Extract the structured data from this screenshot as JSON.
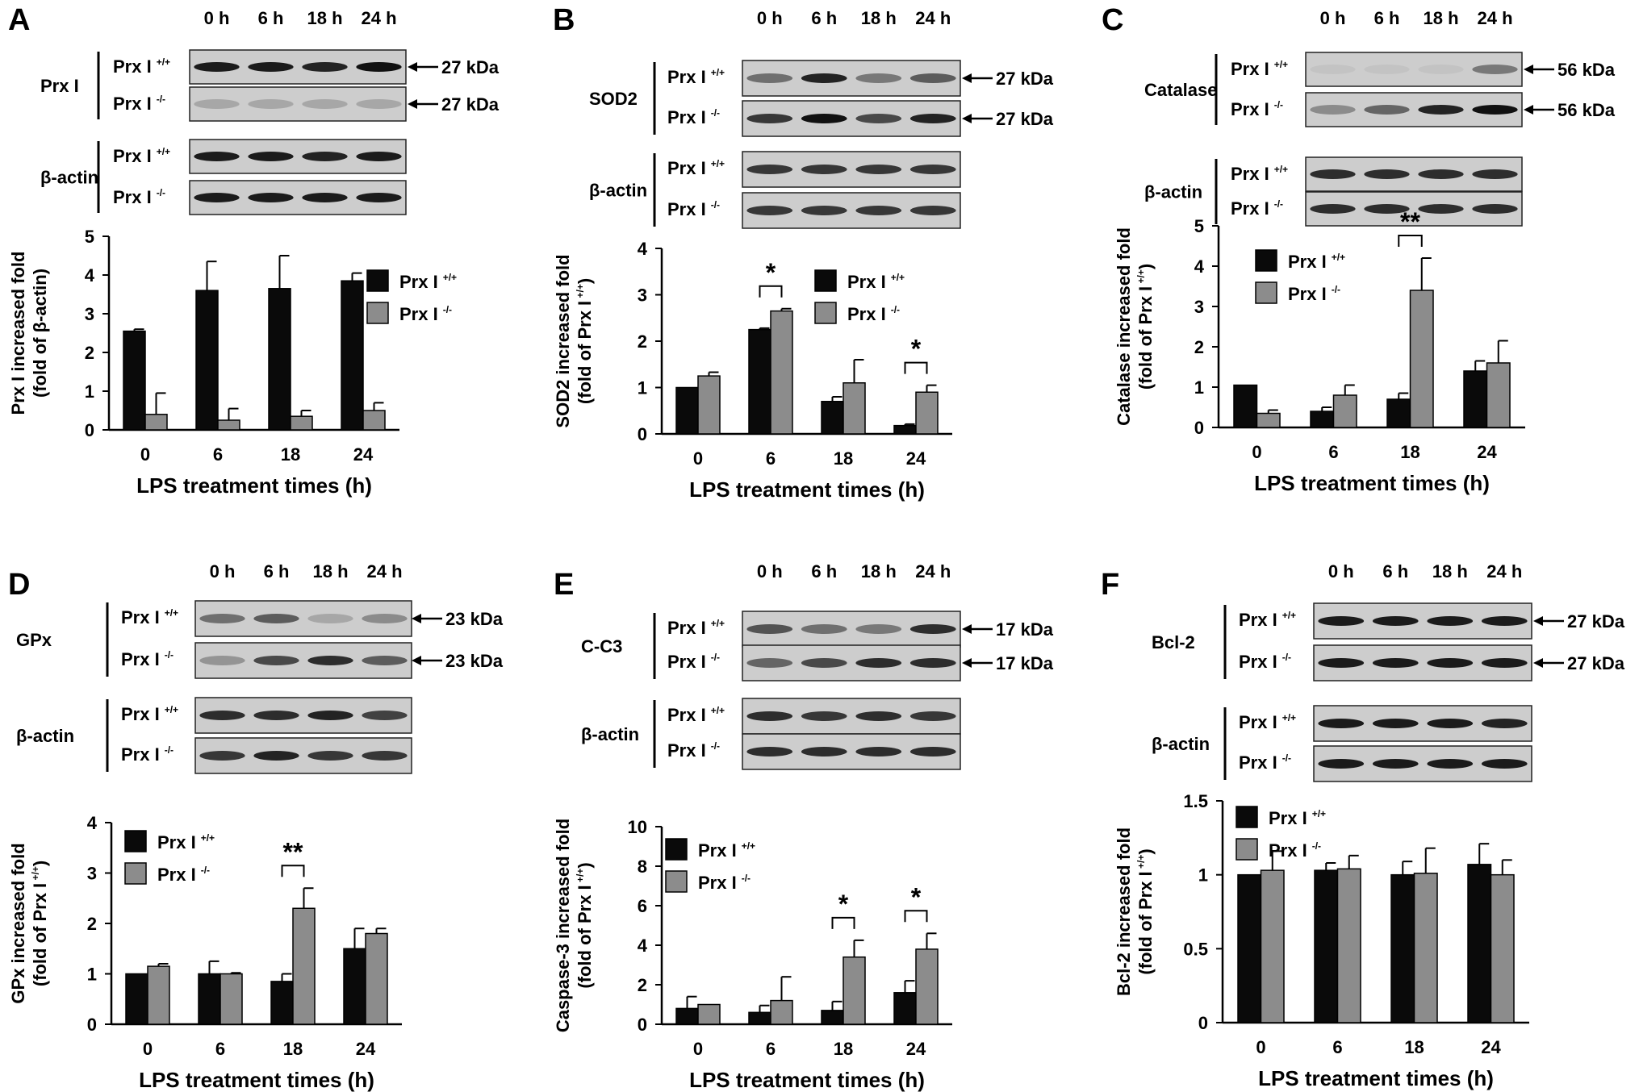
{
  "colors": {
    "wt": "#0a0a0a",
    "ko": "#8c8c8c",
    "blot_bg": "#cdcdcd"
  },
  "chart_data": [
    {
      "type": "bar",
      "panel": "A",
      "categories": [
        "0",
        "6",
        "18",
        "24"
      ],
      "series": [
        {
          "name": "Prx I +/+",
          "values": [
            2.55,
            3.6,
            3.65,
            3.85
          ],
          "errors": [
            0.05,
            0.75,
            0.85,
            0.2
          ]
        },
        {
          "name": "Prx I -/-",
          "values": [
            0.4,
            0.25,
            0.35,
            0.5
          ],
          "errors": [
            0.55,
            0.3,
            0.15,
            0.2
          ]
        }
      ],
      "xlabel": "LPS treatment times (h)",
      "ylabel": [
        "Prx I increased fold",
        "(fold of β-actin)"
      ],
      "ylim": [
        0,
        5
      ],
      "yticks": [
        0,
        1,
        2,
        3,
        4,
        5
      ],
      "significance": [],
      "blot": {
        "lanes": [
          "0 h",
          "6 h",
          "18 h",
          "24 h"
        ],
        "groups": [
          {
            "protein": "Prx I",
            "rows": [
              {
                "genotype": "Prx I",
                "sup": "+/+",
                "size": "27 kDa"
              },
              {
                "genotype": "Prx I",
                "sup": "-/-",
                "size": "27 kDa"
              }
            ]
          },
          {
            "protein": "β-actin",
            "rows": [
              {
                "genotype": "Prx I",
                "sup": "+/+"
              },
              {
                "genotype": "Prx I",
                "sup": "-/-"
              }
            ]
          }
        ]
      }
    },
    {
      "type": "bar",
      "panel": "B",
      "categories": [
        "0",
        "6",
        "18",
        "24"
      ],
      "series": [
        {
          "name": "Prx I +/+",
          "values": [
            1.0,
            2.25,
            0.7,
            0.18
          ],
          "errors": [
            0.0,
            0.03,
            0.1,
            0.03
          ]
        },
        {
          "name": "Prx I -/-",
          "values": [
            1.25,
            2.65,
            1.1,
            0.9
          ],
          "errors": [
            0.08,
            0.05,
            0.5,
            0.15
          ]
        }
      ],
      "xlabel": "LPS treatment times (h)",
      "ylabel": [
        "SOD2 increased fold",
        "(fold of Prx I +/+)"
      ],
      "ylim": [
        0,
        4
      ],
      "yticks": [
        0,
        1,
        2,
        3,
        4
      ],
      "significance": [
        {
          "category": "6",
          "label": "*"
        },
        {
          "category": "24",
          "label": "*"
        }
      ],
      "blot": {
        "lanes": [
          "0 h",
          "6 h",
          "18 h",
          "24 h"
        ],
        "groups": [
          {
            "protein": "SOD2",
            "rows": [
              {
                "genotype": "Prx I",
                "sup": "+/+",
                "size": "27 kDa"
              },
              {
                "genotype": "Prx I",
                "sup": "-/-",
                "size": "27 kDa"
              }
            ]
          },
          {
            "protein": "β-actin",
            "rows": [
              {
                "genotype": "Prx I",
                "sup": "+/+"
              },
              {
                "genotype": "Prx I",
                "sup": "-/-"
              }
            ]
          }
        ]
      }
    },
    {
      "type": "bar",
      "panel": "C",
      "categories": [
        "0",
        "6",
        "18",
        "24"
      ],
      "series": [
        {
          "name": "Prx I +/+",
          "values": [
            1.05,
            0.4,
            0.7,
            1.4
          ],
          "errors": [
            0.0,
            0.1,
            0.15,
            0.25
          ]
        },
        {
          "name": "Prx I -/-",
          "values": [
            0.35,
            0.8,
            3.4,
            1.6
          ],
          "errors": [
            0.08,
            0.25,
            0.8,
            0.55
          ]
        }
      ],
      "xlabel": "LPS treatment times (h)",
      "ylabel": [
        "Catalase increased fold",
        "(fold of Prx I +/+)"
      ],
      "ylim": [
        0,
        5
      ],
      "yticks": [
        0,
        1,
        2,
        3,
        4,
        5
      ],
      "significance": [
        {
          "category": "18",
          "label": "**"
        }
      ],
      "blot": {
        "lanes": [
          "0 h",
          "6 h",
          "18 h",
          "24 h"
        ],
        "groups": [
          {
            "protein": "Catalase",
            "rows": [
              {
                "genotype": "Prx I",
                "sup": "+/+",
                "size": "56 kDa"
              },
              {
                "genotype": "Prx I",
                "sup": "-/-",
                "size": "56 kDa"
              }
            ]
          },
          {
            "protein": "β-actin",
            "rows": [
              {
                "genotype": "Prx I",
                "sup": "+/+"
              },
              {
                "genotype": "Prx I",
                "sup": "-/-"
              }
            ]
          }
        ]
      }
    },
    {
      "type": "bar",
      "panel": "D",
      "categories": [
        "0",
        "6",
        "18",
        "24"
      ],
      "series": [
        {
          "name": "Prx I +/+",
          "values": [
            1.0,
            1.0,
            0.85,
            1.5
          ],
          "errors": [
            0.0,
            0.25,
            0.15,
            0.4
          ]
        },
        {
          "name": "Prx I -/-",
          "values": [
            1.15,
            1.0,
            2.3,
            1.8
          ],
          "errors": [
            0.05,
            0.02,
            0.4,
            0.1
          ]
        }
      ],
      "xlabel": "LPS treatment times (h)",
      "ylabel": [
        "GPx increased fold",
        "(fold of Prx I +/+)"
      ],
      "ylim": [
        0,
        4
      ],
      "yticks": [
        0,
        1,
        2,
        3,
        4
      ],
      "significance": [
        {
          "category": "18",
          "label": "**"
        }
      ],
      "blot": {
        "lanes": [
          "0 h",
          "6 h",
          "18 h",
          "24 h"
        ],
        "groups": [
          {
            "protein": "GPx",
            "rows": [
              {
                "genotype": "Prx I",
                "sup": "+/+",
                "size": "23 kDa"
              },
              {
                "genotype": "Prx I",
                "sup": "-/-",
                "size": "23 kDa"
              }
            ]
          },
          {
            "protein": "β-actin",
            "rows": [
              {
                "genotype": "Prx I",
                "sup": "+/+"
              },
              {
                "genotype": "Prx I",
                "sup": "-/-"
              }
            ]
          }
        ]
      }
    },
    {
      "type": "bar",
      "panel": "E",
      "categories": [
        "0",
        "6",
        "18",
        "24"
      ],
      "series": [
        {
          "name": "Prx I +/+",
          "values": [
            0.8,
            0.6,
            0.7,
            1.6
          ],
          "errors": [
            0.6,
            0.35,
            0.45,
            0.6
          ]
        },
        {
          "name": "Prx I -/-",
          "values": [
            1.0,
            1.2,
            3.4,
            3.8
          ],
          "errors": [
            0.0,
            1.2,
            0.85,
            0.8
          ]
        }
      ],
      "xlabel": "LPS treatment times (h)",
      "ylabel": [
        "Caspase-3 increased fold",
        "(fold of Prx I +/+)"
      ],
      "ylim": [
        0,
        10
      ],
      "yticks": [
        0,
        2,
        4,
        6,
        8,
        10
      ],
      "significance": [
        {
          "category": "18",
          "label": "*"
        },
        {
          "category": "24",
          "label": "*"
        }
      ],
      "blot": {
        "lanes": [
          "0 h",
          "6 h",
          "18 h",
          "24 h"
        ],
        "groups": [
          {
            "protein": "C-C3",
            "rows": [
              {
                "genotype": "Prx I",
                "sup": "+/+",
                "size": "17 kDa"
              },
              {
                "genotype": "Prx I",
                "sup": "-/-",
                "size": "17 kDa"
              }
            ]
          },
          {
            "protein": "β-actin",
            "rows": [
              {
                "genotype": "Prx I",
                "sup": "+/+"
              },
              {
                "genotype": "Prx I",
                "sup": "-/-"
              }
            ]
          }
        ]
      }
    },
    {
      "type": "bar",
      "panel": "F",
      "categories": [
        "0",
        "6",
        "18",
        "24"
      ],
      "series": [
        {
          "name": "Prx I +/+",
          "values": [
            1.0,
            1.03,
            1.0,
            1.07
          ],
          "errors": [
            0.0,
            0.05,
            0.09,
            0.14
          ]
        },
        {
          "name": "Prx I -/-",
          "values": [
            1.03,
            1.04,
            1.01,
            1.0
          ],
          "errors": [
            0.13,
            0.09,
            0.17,
            0.1
          ]
        }
      ],
      "xlabel": "LPS treatment times (h)",
      "ylabel": [
        "Bcl-2 increased fold",
        "(fold of Prx I +/+)"
      ],
      "ylim": [
        0,
        1.5
      ],
      "yticks": [
        0,
        0.5,
        1,
        1.5
      ],
      "significance": [],
      "blot": {
        "lanes": [
          "0 h",
          "6 h",
          "18 h",
          "24 h"
        ],
        "groups": [
          {
            "protein": "Bcl-2",
            "rows": [
              {
                "genotype": "Prx I",
                "sup": "+/+",
                "size": "27 kDa"
              },
              {
                "genotype": "Prx I",
                "sup": "-/-",
                "size": "27 kDa"
              }
            ]
          },
          {
            "protein": "β-actin",
            "rows": [
              {
                "genotype": "Prx I",
                "sup": "+/+"
              },
              {
                "genotype": "Prx I",
                "sup": "-/-"
              }
            ]
          }
        ]
      }
    }
  ]
}
